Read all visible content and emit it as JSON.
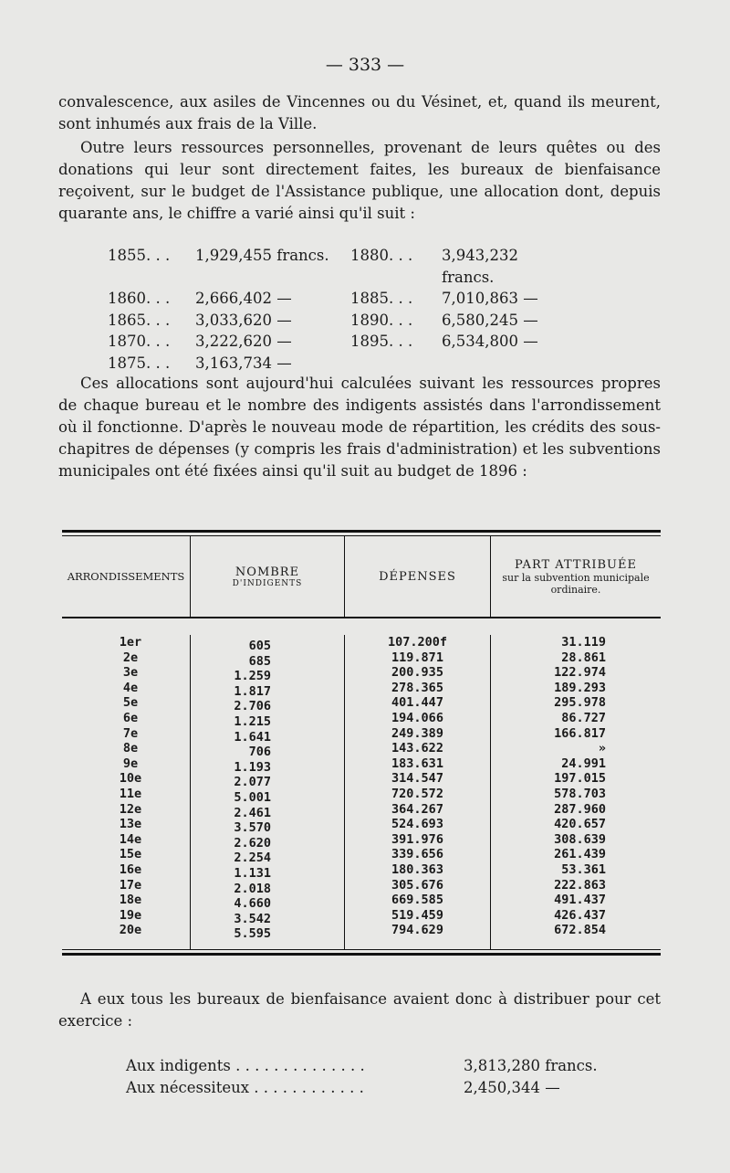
{
  "page_number": "— 333 —",
  "para1": "convalescence, aux asiles de Vincennes ou du Vésinet, et, quand ils meurent, sont inhumés aux frais de la Ville.",
  "para2": "Outre leurs ressources personnelles, provenant de leurs quêtes ou des donations qui leur sont directement faites, les bureaux de bienfaisance reçoivent, sur le budget de l'Assistance publique, une allocation dont, depuis quarante ans, le chiffre a varié ainsi qu'il suit :",
  "allocations": [
    {
      "year": "1855. . .",
      "amount": "1,929,455 francs.",
      "year2": "1880. . .",
      "amount2": "3,943,232 francs."
    },
    {
      "year": "1860. . .",
      "amount": "2,666,402 —",
      "year2": "1885. . .",
      "amount2": "7,010,863 —"
    },
    {
      "year": "1865. . .",
      "amount": "3,033,620 —",
      "year2": "1890. . .",
      "amount2": "6,580,245 —"
    },
    {
      "year": "1870. . .",
      "amount": "3,222,620 —",
      "year2": "1895. . .",
      "amount2": "6,534,800 —"
    },
    {
      "year": "1875. . .",
      "amount": "3,163,734 —",
      "year2": "",
      "amount2": ""
    }
  ],
  "para3": "Ces allocations sont aujourd'hui calculées suivant les ressources propres de chaque bureau et le nombre des indigents assistés dans l'arrondissement où il fonctionne. D'après le nouveau mode de répartition, les crédits des sous-chapitres de dépenses (y compris les frais d'administration) et les subventions municipales ont été fixées ainsi qu'il suit au budget de 1896 :",
  "table": {
    "headers": {
      "arr": "ARRONDISSEMENTS",
      "nombre": "NOMBRE",
      "nombre_sub": "D'INDIGENTS",
      "depenses": "DÉPENSES",
      "part": "PART ATTRIBUÉE",
      "part_sub": "sur la subvention municipale ordinaire."
    },
    "arr": [
      "1er",
      "2e",
      "3e",
      "4e",
      "5e",
      "6e",
      "7e",
      "8e",
      "9e",
      "10e",
      "11e",
      "12e",
      "13e",
      "14e",
      "15e",
      "16e",
      "17e",
      "18e",
      "19e",
      "20e"
    ],
    "nombre": [
      "605",
      "685",
      "1.259",
      "1.817",
      "2.706",
      "1.215",
      "1.641",
      "706",
      "1.193",
      "2.077",
      "5.001",
      "2.461",
      "3.570",
      "2.620",
      "2.254",
      "1.131",
      "2.018",
      "4.660",
      "3.542",
      "5.595"
    ],
    "depenses": [
      "107.200f",
      "119.871",
      "200.935",
      "278.365",
      "401.447",
      "194.066",
      "249.389",
      "143.622",
      "183.631",
      "314.547",
      "720.572",
      "364.267",
      "524.693",
      "391.976",
      "339.656",
      "180.363",
      "305.676",
      "669.585",
      "519.459",
      "794.629"
    ],
    "part": [
      "31.119",
      "28.861",
      "122.974",
      "189.293",
      "295.978",
      "86.727",
      "166.817",
      "»",
      "24.991",
      "197.015",
      "578.703",
      "287.960",
      "420.657",
      "308.639",
      "261.439",
      "53.361",
      "222.863",
      "491.437",
      "426.437",
      "672.854"
    ]
  },
  "para4": "A eux tous les bureaux de bienfaisance avaient donc à distribuer pour cet exercice :",
  "totals": [
    {
      "label": "Aux indigents . . . . . . . . . . . . . .",
      "value": "3,813,280 francs."
    },
    {
      "label": "Aux nécessiteux . . . . . . . . . . . .",
      "value": "2,450,344 —"
    }
  ]
}
